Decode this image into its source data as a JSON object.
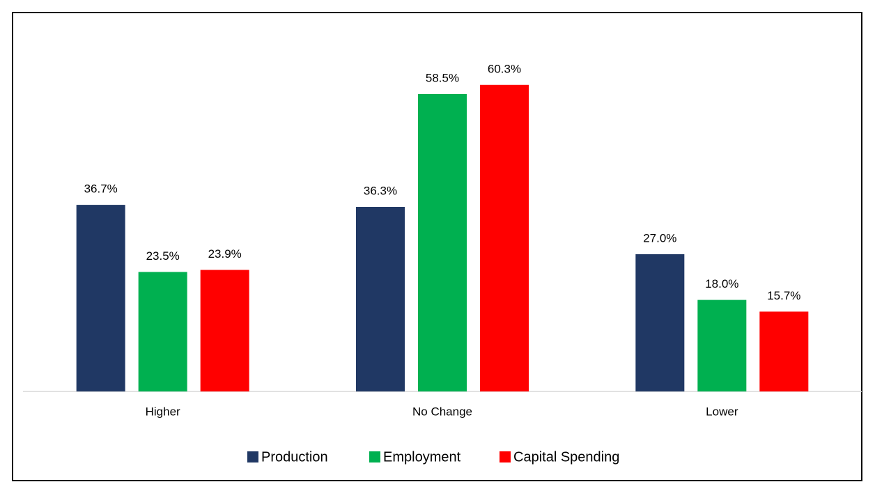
{
  "chart_data": {
    "type": "bar",
    "categories": [
      "Higher",
      "No Change",
      "Lower"
    ],
    "series": [
      {
        "name": "Production",
        "color": "#203864",
        "values": [
          36.7,
          36.3,
          27.0
        ],
        "value_labels": [
          "36.7%",
          "36.3%",
          "27.0%"
        ]
      },
      {
        "name": "Employment",
        "color": "#00b050",
        "values": [
          23.5,
          58.5,
          18.0
        ],
        "value_labels": [
          "23.5%",
          "58.5%",
          "18.0%"
        ]
      },
      {
        "name": "Capital Spending",
        "color": "#ff0000",
        "values": [
          23.9,
          60.3,
          15.7
        ],
        "value_labels": [
          "23.9%",
          "60.3%",
          "15.7%"
        ]
      }
    ],
    "ylim": [
      0,
      70
    ],
    "grid": false,
    "legend": "bottom"
  }
}
